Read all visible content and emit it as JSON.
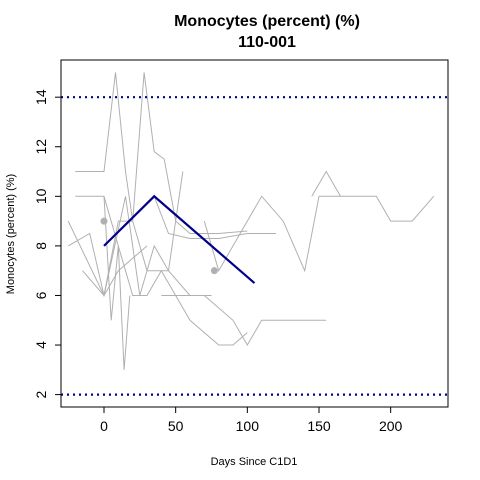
{
  "chart_data": {
    "type": "line",
    "title": "Monocytes (percent) (%)",
    "subtitle": "110-001",
    "xlabel": "Days Since C1D1",
    "ylabel": "Monocytes (percent) (%)",
    "xlim": [
      -30,
      240
    ],
    "ylim": [
      1.5,
      15.5
    ],
    "x_ticks": [
      0,
      50,
      100,
      150,
      200
    ],
    "y_ticks": [
      2,
      4,
      6,
      8,
      10,
      12,
      14
    ],
    "reference_lines": [
      {
        "y": 14,
        "color": "#00008b",
        "style": "dotted"
      },
      {
        "y": 2,
        "color": "#00008b",
        "style": "dotted"
      }
    ],
    "background_series_color": "#b0b0b0",
    "highlight_color": "#00008b",
    "background_series": [
      {
        "x": [
          -20,
          0,
          8,
          15,
          20,
          28,
          35,
          42,
          50,
          60,
          80,
          100
        ],
        "y": [
          11,
          11,
          15,
          11,
          9,
          15,
          11.8,
          11.5,
          9,
          8.5,
          8.5,
          8.6
        ]
      },
      {
        "x": [
          -15,
          0,
          10,
          20,
          30,
          35,
          45,
          55
        ],
        "y": [
          7,
          6,
          9,
          9,
          7,
          7,
          7,
          11
        ]
      },
      {
        "x": [
          -25,
          0,
          15,
          25,
          35,
          45,
          60,
          75
        ],
        "y": [
          9,
          6,
          10,
          6,
          8,
          7,
          6,
          6
        ]
      },
      {
        "x": [
          -25,
          -10,
          0,
          10,
          20,
          30
        ],
        "y": [
          8,
          8.5,
          6,
          7,
          7.5,
          8
        ]
      },
      {
        "x": [
          -20,
          0,
          10,
          20,
          30,
          40,
          60,
          80,
          90,
          100
        ],
        "y": [
          10,
          10,
          8,
          6,
          6,
          7,
          5,
          4,
          4,
          4.5
        ]
      },
      {
        "x": [
          0,
          5,
          10,
          14,
          18
        ],
        "y": [
          10,
          5,
          8,
          3,
          6
        ]
      },
      {
        "x": [
          35,
          45,
          60,
          80,
          100,
          120
        ],
        "y": [
          10,
          8.5,
          8.3,
          8.3,
          8.5,
          8.5
        ]
      },
      {
        "x": [
          40,
          45,
          55,
          70,
          90,
          100,
          110,
          125,
          140,
          155
        ],
        "y": [
          6,
          6,
          6,
          6,
          5,
          4,
          5,
          5,
          5,
          5
        ]
      },
      {
        "x": [
          70,
          80,
          100,
          110,
          125,
          140,
          150,
          160,
          175,
          190,
          200,
          215,
          230
        ],
        "y": [
          9,
          7,
          9,
          10,
          9,
          7,
          10,
          10,
          10,
          10,
          9,
          9,
          10
        ]
      },
      {
        "x": [
          145,
          155,
          165
        ],
        "y": [
          10,
          11,
          10
        ]
      }
    ],
    "background_points": [
      {
        "x": 0,
        "y": 9
      },
      {
        "x": 77,
        "y": 7
      }
    ],
    "highlight_series": {
      "name": "110-001",
      "x": [
        0,
        35,
        105
      ],
      "y": [
        8,
        10,
        6.5
      ]
    }
  }
}
